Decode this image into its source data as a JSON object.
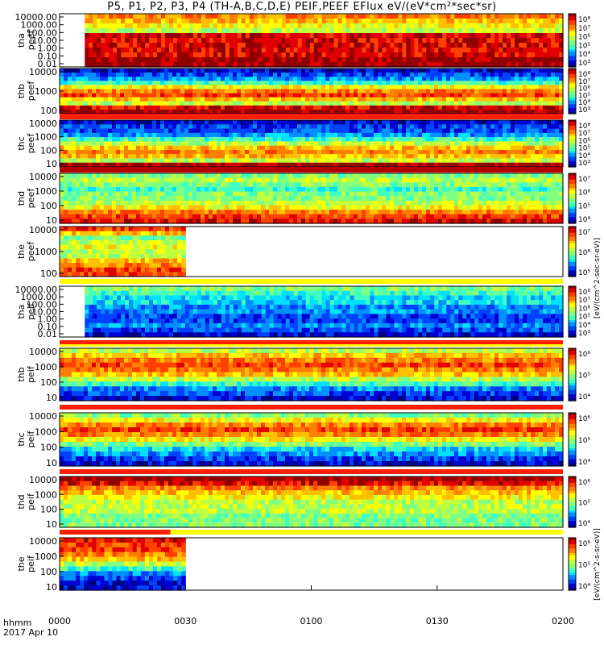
{
  "title": "P5, P1, P2, P3, P4 (TH-A,B,C,D,E) PEIF,PEEF EFlux eV/(eV*cm²*sec*sr)",
  "time_axis": {
    "labels": [
      "0000",
      "0030",
      "0100",
      "0130",
      "0200"
    ],
    "row_label_1": "hhmm",
    "row_label_2": "2017 Apr 10"
  },
  "colorbar_caption_electron": "[eV/(cm^2-sec-sr-eV)]",
  "colorbar_caption_ion": "[eV/(cm^2-s-sr-eV)]",
  "chart_data": [
    {
      "type": "heatmap",
      "panel": "tha_peef",
      "label": [
        "tha",
        "peef"
      ],
      "y_ticks": [
        "10000.00",
        "1000.00",
        "100.00",
        "10.00",
        "1.00",
        "0.10",
        "0.01"
      ],
      "colorbar_ticks": [
        "10⁸",
        "10⁷",
        "10⁶",
        "10⁵",
        "10⁴",
        "10³"
      ],
      "data_start_frac": 0.05,
      "data_end_frac": 1.0
    },
    {
      "type": "heatmap",
      "panel": "thb_peef",
      "label": [
        "thb",
        "peef"
      ],
      "y_ticks": [
        "10000",
        "1000",
        "100"
      ],
      "colorbar_ticks": [
        "10⁸",
        "10⁷",
        "10⁶",
        "10⁵",
        "10⁴",
        "10³"
      ],
      "data_start_frac": 0.0,
      "data_end_frac": 1.0
    },
    {
      "type": "heatmap",
      "panel": "thc_peef",
      "label": [
        "thc",
        "peef"
      ],
      "y_ticks": [
        "10000",
        "1000",
        "100",
        "10"
      ],
      "colorbar_ticks": [
        "10⁸",
        "10⁷",
        "10⁶",
        "10⁵",
        "10⁴",
        "10³"
      ],
      "data_start_frac": 0.0,
      "data_end_frac": 1.0
    },
    {
      "type": "heatmap",
      "panel": "thd_peef",
      "label": [
        "thd",
        "peef"
      ],
      "y_ticks": [
        "10000",
        "1000",
        "100",
        "10"
      ],
      "colorbar_ticks": [
        "10⁷",
        "10⁶",
        "10⁵",
        "10⁴"
      ],
      "data_start_frac": 0.0,
      "data_end_frac": 1.0
    },
    {
      "type": "heatmap",
      "panel": "the_peef",
      "label": [
        "the",
        "peef"
      ],
      "y_ticks": [
        "10000",
        "1000",
        "100"
      ],
      "colorbar_ticks": [
        "10⁷",
        "10⁶",
        "10⁵"
      ],
      "data_start_frac": 0.0,
      "data_end_frac": 0.25
    },
    {
      "type": "heatmap",
      "panel": "tha_peif",
      "label": [
        "tha",
        "peif"
      ],
      "y_ticks": [
        "10000.00",
        "1000.00",
        "100.00",
        "10.00",
        "1.00",
        "0.10",
        "0.01"
      ],
      "colorbar_ticks": [
        "10⁸",
        "10⁷",
        "10⁶",
        "10⁵",
        "10⁴",
        "10³"
      ],
      "data_start_frac": 0.05,
      "data_end_frac": 1.0
    },
    {
      "type": "heatmap",
      "panel": "thb_peif",
      "label": [
        "thb",
        "peif"
      ],
      "y_ticks": [
        "10000",
        "1000",
        "100",
        "10"
      ],
      "colorbar_ticks": [
        "10⁶",
        "10⁵",
        "10⁴"
      ],
      "data_start_frac": 0.0,
      "data_end_frac": 1.0
    },
    {
      "type": "heatmap",
      "panel": "thc_peif",
      "label": [
        "thc",
        "peif"
      ],
      "y_ticks": [
        "10000",
        "1000",
        "100",
        "10"
      ],
      "colorbar_ticks": [
        "10⁶",
        "10⁵",
        "10⁴"
      ],
      "data_start_frac": 0.0,
      "data_end_frac": 1.0
    },
    {
      "type": "heatmap",
      "panel": "thd_peif",
      "label": [
        "thd",
        "peif"
      ],
      "y_ticks": [
        "10000",
        "1000",
        "100",
        "10"
      ],
      "colorbar_ticks": [
        "10⁶",
        "10⁵",
        "10⁴"
      ],
      "data_start_frac": 0.0,
      "data_end_frac": 1.0
    },
    {
      "type": "heatmap",
      "panel": "the_peif",
      "label": [
        "the",
        "peif"
      ],
      "y_ticks": [
        "10000",
        "1000",
        "100",
        "10"
      ],
      "colorbar_ticks": [
        "10⁶",
        "10⁵",
        "10⁴"
      ],
      "data_start_frac": 0.0,
      "data_end_frac": 0.25
    }
  ],
  "colors": {
    "dark_red": "#b40000",
    "red": "#ff1e00",
    "orange": "#ff8c00",
    "yellow": "#ffff00",
    "green": "#00e040",
    "cyan": "#00e6ff",
    "blue": "#0050ff",
    "navy": "#0000a0",
    "purple": "#4b0082"
  }
}
